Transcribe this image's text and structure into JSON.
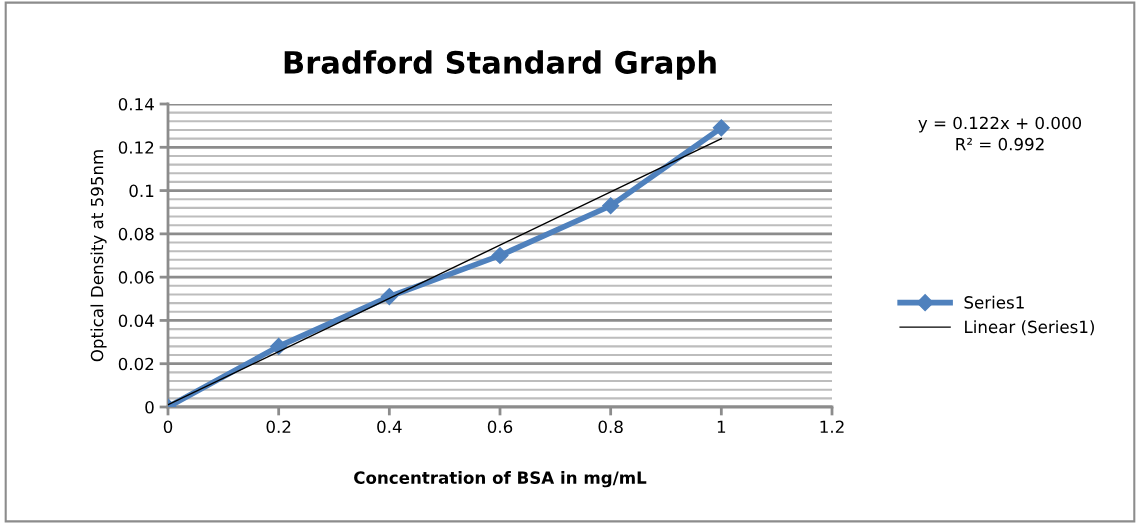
{
  "chart_data": {
    "type": "line",
    "title": "Bradford Standard Graph",
    "xlabel": "Concentration of BSA in mg/mL",
    "ylabel": "Optical Density at 595nm",
    "x": [
      0,
      0.2,
      0.4,
      0.6,
      0.8,
      1
    ],
    "series": [
      {
        "name": "Series1",
        "color": "#4f81bd",
        "values": [
          0,
          0.028,
          0.051,
          0.07,
          0.093,
          0.129
        ],
        "marker": "diamond"
      },
      {
        "name": "Linear (Series1)",
        "color": "#000000",
        "x": [
          0,
          1
        ],
        "values": [
          0.001,
          0.124
        ],
        "marker": "none"
      }
    ],
    "annotations": [
      "y = 0.122x + 0.000\nR² = 0.992"
    ],
    "xlim": [
      0,
      1.2
    ],
    "xticks": [
      0,
      0.2,
      0.4,
      0.6,
      0.8,
      1,
      1.2
    ],
    "ylim": [
      0,
      0.14
    ],
    "yticks": [
      0,
      0.02,
      0.04,
      0.06,
      0.08,
      0.1,
      0.12,
      0.14
    ],
    "grid": "y",
    "legend": "right",
    "line_style": "solid"
  }
}
